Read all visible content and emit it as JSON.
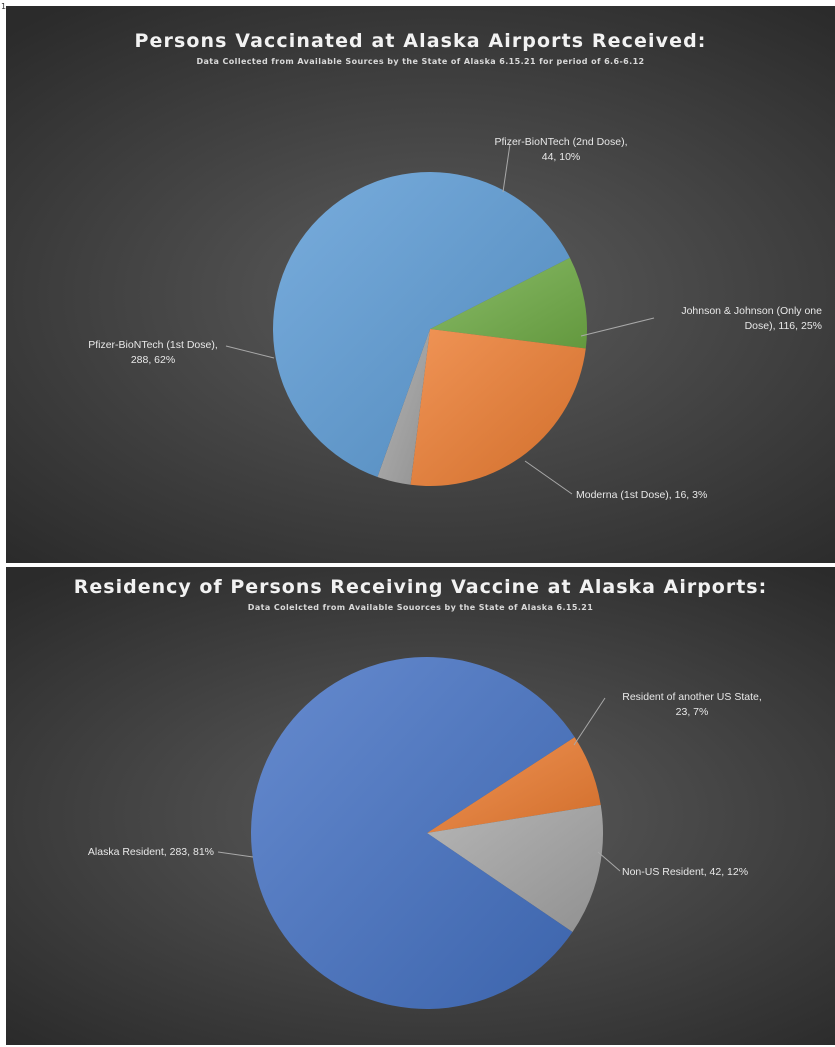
{
  "corner_mark": "1",
  "chart_data": [
    {
      "type": "pie",
      "title": "Persons Vaccinated at Alaska Airports Received:",
      "subtitle": "Data Collected from Available Sources by the State of Alaska 6.15.21 for period of 6.6-6.12",
      "slices": [
        {
          "name": "Pfizer-BioNTech (2nd Dose)",
          "value": 44,
          "percent": "10%",
          "color": "#70ad47",
          "label_lines": [
            "Pfizer-BioNTech (2nd Dose),",
            "44, 10%"
          ]
        },
        {
          "name": "Johnson & Johnson (Only one Dose)",
          "value": 116,
          "percent": "25%",
          "color": "#ed7d31",
          "label_lines": [
            "Johnson & Johnson (Only one",
            "Dose), 116, 25%"
          ]
        },
        {
          "name": "Moderna (1st Dose)",
          "value": 16,
          "percent": "3%",
          "color": "#a5a5a5",
          "label_lines": [
            "Moderna (1st Dose), 16, 3%"
          ]
        },
        {
          "name": "Pfizer-BioNTech (1st Dose)",
          "value": 288,
          "percent": "62%",
          "color": "#5b9bd5",
          "label_lines": [
            "Pfizer-BioNTech (1st Dose),",
            "288, 62%"
          ]
        }
      ]
    },
    {
      "type": "pie",
      "title": "Residency of Persons Receiving Vaccine at Alaska Airports:",
      "subtitle": "Data Colelcted from Available Souorces by the State of Alaska 6.15.21",
      "slices": [
        {
          "name": "Resident of another US State",
          "value": 23,
          "percent": "7%",
          "color": "#ed7d31",
          "label_lines": [
            "Resident of another US State,",
            "23, 7%"
          ]
        },
        {
          "name": "Non-US Resident",
          "value": 42,
          "percent": "12%",
          "color": "#a5a5a5",
          "label_lines": [
            "Non-US Resident, 42, 12%"
          ]
        },
        {
          "name": "Alaska Resident",
          "value": 283,
          "percent": "81%",
          "color": "#4472c4",
          "label_lines": [
            "Alaska Resident, 283, 81%"
          ]
        }
      ]
    }
  ]
}
